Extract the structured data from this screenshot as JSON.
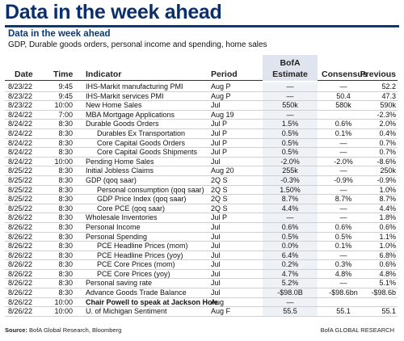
{
  "headline": "Data in the week ahead",
  "panel": {
    "title": "Data in the week ahead",
    "subtitle": "GDP, Durable goods orders, personal income and spending, home sales"
  },
  "columns": {
    "date": "Date",
    "time": "Time",
    "indicator": "Indicator",
    "period": "Period",
    "estimate_line1": "BofA",
    "estimate_line2": "Estimate",
    "consensus": "Consensus",
    "previous": "Previous"
  },
  "rows": [
    {
      "date": "8/23/22",
      "time": "9:45",
      "indicator": "IHS-Markit manufacturing PMI",
      "indent": 0,
      "bold": false,
      "period": "Aug P",
      "estimate": "—",
      "consensus": "—",
      "previous": "52.2"
    },
    {
      "date": "8/23/22",
      "time": "9:45",
      "indicator": "IHS-Markit services PMI",
      "indent": 0,
      "bold": false,
      "period": "Aug P",
      "estimate": "—",
      "consensus": "50.4",
      "previous": "47.3"
    },
    {
      "date": "8/23/22",
      "time": "10:00",
      "indicator": "New Home Sales",
      "indent": 0,
      "bold": false,
      "period": "Jul",
      "estimate": "550k",
      "consensus": "580k",
      "previous": "590k"
    },
    {
      "date": "8/24/22",
      "time": "7:00",
      "indicator": "MBA Mortgage Applications",
      "indent": 0,
      "bold": false,
      "period": "Aug 19",
      "estimate": "—",
      "consensus": "",
      "previous": "-2.3%"
    },
    {
      "date": "8/24/22",
      "time": "8:30",
      "indicator": "Durable Goods Orders",
      "indent": 0,
      "bold": false,
      "period": "Jul P",
      "estimate": "1.5%",
      "consensus": "0.6%",
      "previous": "2.0%"
    },
    {
      "date": "8/24/22",
      "time": "8:30",
      "indicator": "Durables Ex Transportation",
      "indent": 1,
      "bold": false,
      "period": "Jul P",
      "estimate": "0.5%",
      "consensus": "0.1%",
      "previous": "0.4%"
    },
    {
      "date": "8/24/22",
      "time": "8:30",
      "indicator": "Core Capital Goods Orders",
      "indent": 1,
      "bold": false,
      "period": "Jul P",
      "estimate": "0.5%",
      "consensus": "—",
      "previous": "0.7%"
    },
    {
      "date": "8/24/22",
      "time": "8:30",
      "indicator": "Core Capital Goods Shipments",
      "indent": 1,
      "bold": false,
      "period": "Jul P",
      "estimate": "0.5%",
      "consensus": "—",
      "previous": "0.7%"
    },
    {
      "date": "8/24/22",
      "time": "10:00",
      "indicator": "Pending Home Sales",
      "indent": 0,
      "bold": false,
      "period": "Jul",
      "estimate": "-2.0%",
      "consensus": "-2.0%",
      "previous": "-8.6%"
    },
    {
      "date": "8/25/22",
      "time": "8:30",
      "indicator": "Initial Jobless Claims",
      "indent": 0,
      "bold": false,
      "period": "Aug 20",
      "estimate": "255k",
      "consensus": "—",
      "previous": "250k"
    },
    {
      "date": "8/25/22",
      "time": "8:30",
      "indicator": "GDP (qoq saar)",
      "indent": 0,
      "bold": false,
      "period": "2Q S",
      "estimate": "-0.3%",
      "consensus": "-0.9%",
      "previous": "-0.9%"
    },
    {
      "date": "8/25/22",
      "time": "8:30",
      "indicator": "Personal consumption (qoq saar)",
      "indent": 1,
      "bold": false,
      "period": "2Q S",
      "estimate": "1.50%",
      "consensus": "—",
      "previous": "1.0%"
    },
    {
      "date": "8/25/22",
      "time": "8:30",
      "indicator": "GDP Price Index (qoq saar)",
      "indent": 1,
      "bold": false,
      "period": "2Q S",
      "estimate": "8.7%",
      "consensus": "8.7%",
      "previous": "8.7%"
    },
    {
      "date": "8/25/22",
      "time": "8:30",
      "indicator": "Core PCE (qoq saar)",
      "indent": 1,
      "bold": false,
      "period": "2Q S",
      "estimate": "4.4%",
      "consensus": "—",
      "previous": "4.4%"
    },
    {
      "date": "8/26/22",
      "time": "8:30",
      "indicator": "Wholesale Inventories",
      "indent": 0,
      "bold": false,
      "period": "Jul P",
      "estimate": "—",
      "consensus": "—",
      "previous": "1.8%"
    },
    {
      "date": "8/26/22",
      "time": "8:30",
      "indicator": "Personal Income",
      "indent": 0,
      "bold": false,
      "period": "Jul",
      "estimate": "0.6%",
      "consensus": "0.6%",
      "previous": "0.6%"
    },
    {
      "date": "8/26/22",
      "time": "8:30",
      "indicator": "Personal Spending",
      "indent": 0,
      "bold": false,
      "period": "Jul",
      "estimate": "0.5%",
      "consensus": "0.5%",
      "previous": "1.1%"
    },
    {
      "date": "8/26/22",
      "time": "8:30",
      "indicator": "PCE Headline Prices (mom)",
      "indent": 1,
      "bold": false,
      "period": "Jul",
      "estimate": "0.0%",
      "consensus": "0.1%",
      "previous": "1.0%"
    },
    {
      "date": "8/26/22",
      "time": "8:30",
      "indicator": "PCE Headline Prices (yoy)",
      "indent": 1,
      "bold": false,
      "period": "Jul",
      "estimate": "6.4%",
      "consensus": "—",
      "previous": "6.8%"
    },
    {
      "date": "8/26/22",
      "time": "8:30",
      "indicator": "PCE Core Prices (mom)",
      "indent": 1,
      "bold": false,
      "period": "Jul",
      "estimate": "0.2%",
      "consensus": "0.3%",
      "previous": "0.6%"
    },
    {
      "date": "8/26/22",
      "time": "8:30",
      "indicator": "PCE Core Prices (yoy)",
      "indent": 1,
      "bold": false,
      "period": "Jul",
      "estimate": "4.7%",
      "consensus": "4.8%",
      "previous": "4.8%"
    },
    {
      "date": "8/26/22",
      "time": "8:30",
      "indicator": "Personal saving rate",
      "indent": 0,
      "bold": false,
      "period": "Jul",
      "estimate": "5.2%",
      "consensus": "—",
      "previous": "5.1%"
    },
    {
      "date": "8/26/22",
      "time": "8:30",
      "indicator": "Advance Goods Trade Balance",
      "indent": 0,
      "bold": false,
      "period": "Jul",
      "estimate": "-$98.0B",
      "consensus": "-$98.6bn",
      "previous": "-$98.6b"
    },
    {
      "date": "8/26/22",
      "time": "10:00",
      "indicator": "Chair Powell to speak at Jackson Hole",
      "indent": 0,
      "bold": true,
      "period": "Aug",
      "estimate": "—",
      "consensus": "",
      "previous": ""
    },
    {
      "date": "8/26/22",
      "time": "10:00",
      "indicator": "U. of Michigan Sentiment",
      "indent": 0,
      "bold": false,
      "period": "Aug F",
      "estimate": "55.5",
      "consensus": "55.1",
      "previous": "55.1"
    }
  ],
  "footer": {
    "source_label": "Source:",
    "source_text": "BofA Global Research, Bloomberg",
    "credit": "BofA GLOBAL RESEARCH"
  }
}
